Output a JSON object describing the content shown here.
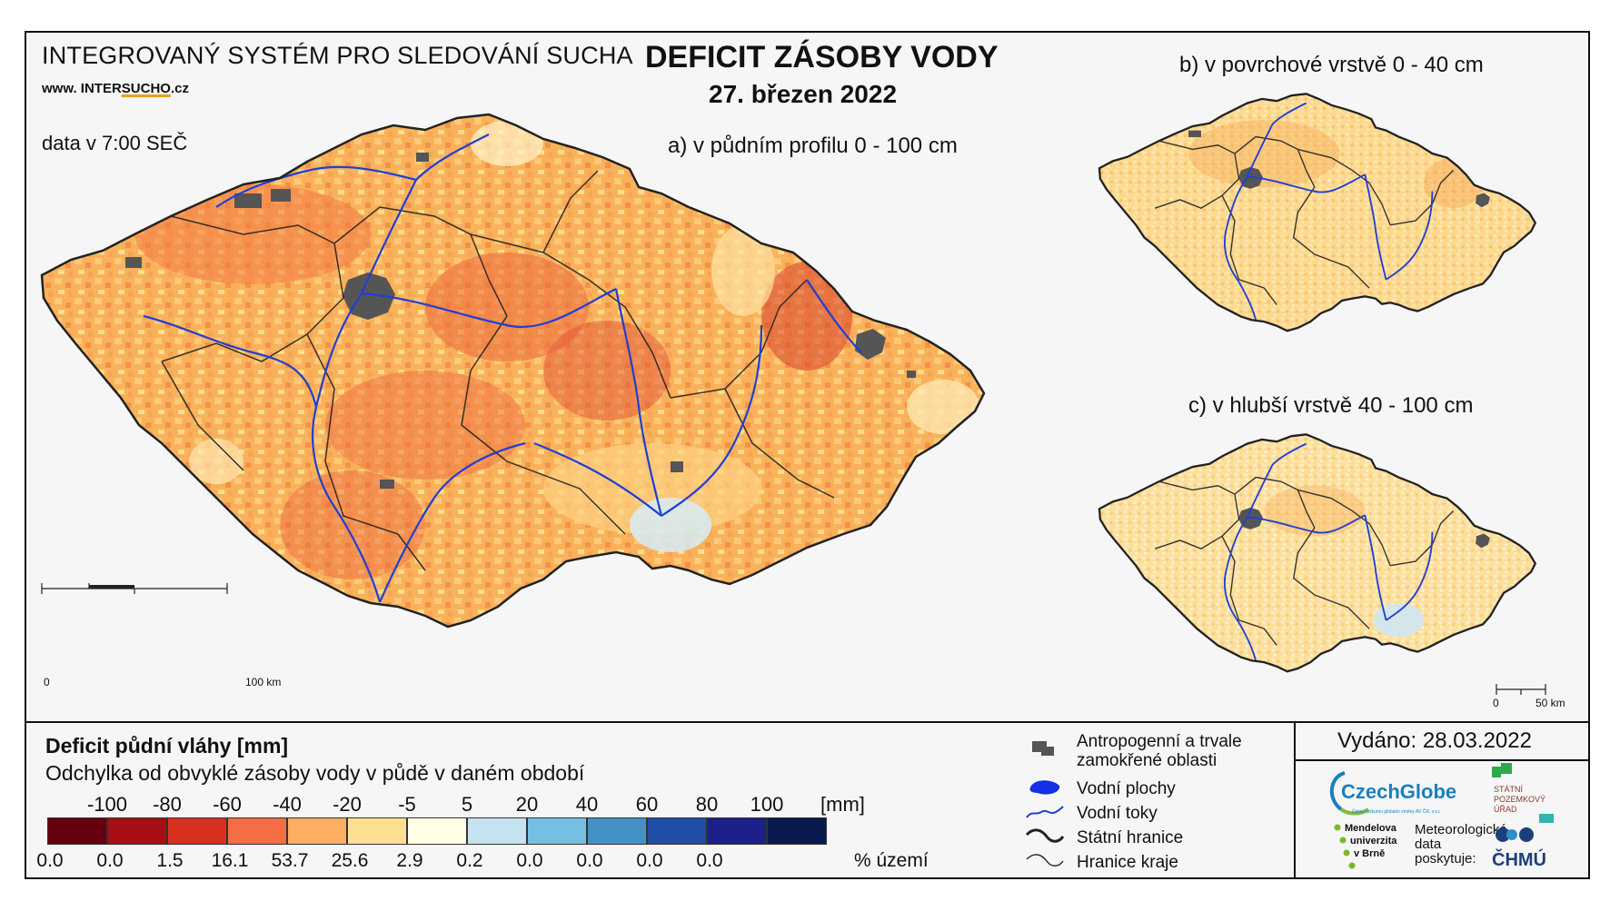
{
  "header": {
    "system_title": "INTEGROVANÝ SYSTÉM PRO SLEDOVÁNÍ SUCHA",
    "website_prefix": "www. INTER",
    "website_brand": "SUCHO",
    "website_suffix": ".cz",
    "data_time": "data v 7:00 SEČ",
    "main_title": "DEFICIT ZÁSOBY VODY",
    "date": "27. březen 2022"
  },
  "maps": {
    "a": {
      "title": "a) v půdním profilu 0 - 100 cm",
      "scale_start": "0",
      "scale_end": "100 km"
    },
    "b": {
      "title": "b) v povrchové vrstvě 0 - 40 cm"
    },
    "c": {
      "title": "c) v hlubší vrstvě 40 - 100 cm",
      "scale_start": "0",
      "scale_end": "50 km"
    }
  },
  "legend": {
    "title": "Deficit půdní vláhy  [mm]",
    "subtitle": "Odchylka od obvyklé zásoby vody v půdě v daném období",
    "ticks": [
      "-100",
      "-80",
      "-60",
      "-40",
      "-20",
      "-5",
      "5",
      "20",
      "40",
      "60",
      "80",
      "100"
    ],
    "tick_unit": "[mm]",
    "classes": [
      {
        "color": "#67000d",
        "pct": "0.0"
      },
      {
        "color": "#a50f15",
        "pct": "0.0"
      },
      {
        "color": "#d7301f",
        "pct": "1.5"
      },
      {
        "color": "#f46d43",
        "pct": "16.1"
      },
      {
        "color": "#fdae61",
        "pct": "53.7"
      },
      {
        "color": "#fee090",
        "pct": "25.6"
      },
      {
        "color": "#ffffe5",
        "pct": "2.9"
      },
      {
        "color": "#c6e3f2",
        "pct": "0.2"
      },
      {
        "color": "#74c0e3",
        "pct": "0.0"
      },
      {
        "color": "#4292c6",
        "pct": "0.0"
      },
      {
        "color": "#1f4ea8",
        "pct": "0.0"
      },
      {
        "color": "#1d1f8a",
        "pct": "0.0"
      },
      {
        "color": "#0b1a4e",
        "pct": null
      }
    ],
    "pct_unit": "% území"
  },
  "symbols": [
    {
      "icon": "urban-area-icon",
      "label_1": "Antropogenní a trvale",
      "label_2": "zamokřené oblasti"
    },
    {
      "icon": "water-body-icon",
      "label_1": "Vodní plochy"
    },
    {
      "icon": "river-icon",
      "label_1": "Vodní toky"
    },
    {
      "icon": "state-border-icon",
      "label_1": "Státní hranice"
    },
    {
      "icon": "region-border-icon",
      "label_1": "Hranice kraje"
    }
  ],
  "footer": {
    "issued": "Vydáno: 28.03.2022",
    "czechglobe": "CzechGlobe",
    "czechglobe_sub": "Ústav výzkumu globální změny AV ČR, v.v.i.",
    "spu_1": "STÁTNÍ",
    "spu_2": "POZEMKOVÝ",
    "spu_3": "ÚŘAD",
    "mendel_1": "Mendelova",
    "mendel_2": "univerzita",
    "mendel_3": "v Brně",
    "meteo_1": "Meteorologická",
    "meteo_2": "data",
    "meteo_3": "poskytuje:",
    "chmu": "ČHMÚ"
  },
  "colors": {
    "river": "#1f3fd6",
    "urban": "#555555",
    "border": "#222222"
  }
}
